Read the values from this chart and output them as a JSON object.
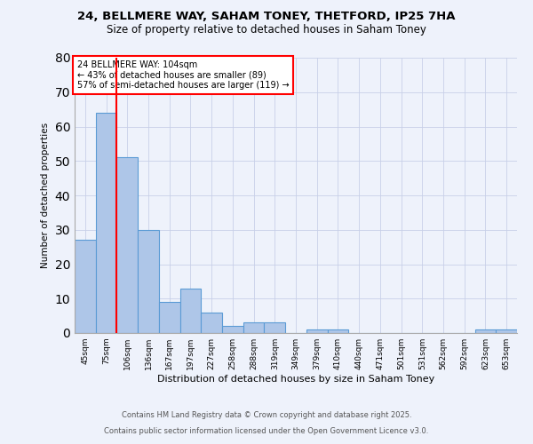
{
  "title_line1": "24, BELLMERE WAY, SAHAM TONEY, THETFORD, IP25 7HA",
  "title_line2": "Size of property relative to detached houses in Saham Toney",
  "xlabel": "Distribution of detached houses by size in Saham Toney",
  "ylabel": "Number of detached properties",
  "categories": [
    "45sqm",
    "75sqm",
    "106sqm",
    "136sqm",
    "167sqm",
    "197sqm",
    "227sqm",
    "258sqm",
    "288sqm",
    "319sqm",
    "349sqm",
    "379sqm",
    "410sqm",
    "440sqm",
    "471sqm",
    "501sqm",
    "531sqm",
    "562sqm",
    "592sqm",
    "623sqm",
    "653sqm"
  ],
  "values": [
    27,
    64,
    51,
    30,
    9,
    13,
    6,
    2,
    3,
    3,
    0,
    1,
    1,
    0,
    0,
    0,
    0,
    0,
    0,
    1,
    1
  ],
  "bar_color": "#aec6e8",
  "bar_edge_color": "#5b9bd5",
  "vline_color": "red",
  "annotation_text": "24 BELLMERE WAY: 104sqm\n← 43% of detached houses are smaller (89)\n57% of semi-detached houses are larger (119) →",
  "annotation_box_color": "white",
  "annotation_box_edge": "red",
  "ylim": [
    0,
    80
  ],
  "yticks": [
    0,
    10,
    20,
    30,
    40,
    50,
    60,
    70,
    80
  ],
  "footer_line1": "Contains HM Land Registry data © Crown copyright and database right 2025.",
  "footer_line2": "Contains public sector information licensed under the Open Government Licence v3.0.",
  "bg_color": "#eef2fb",
  "grid_color": "#c8d0e8"
}
